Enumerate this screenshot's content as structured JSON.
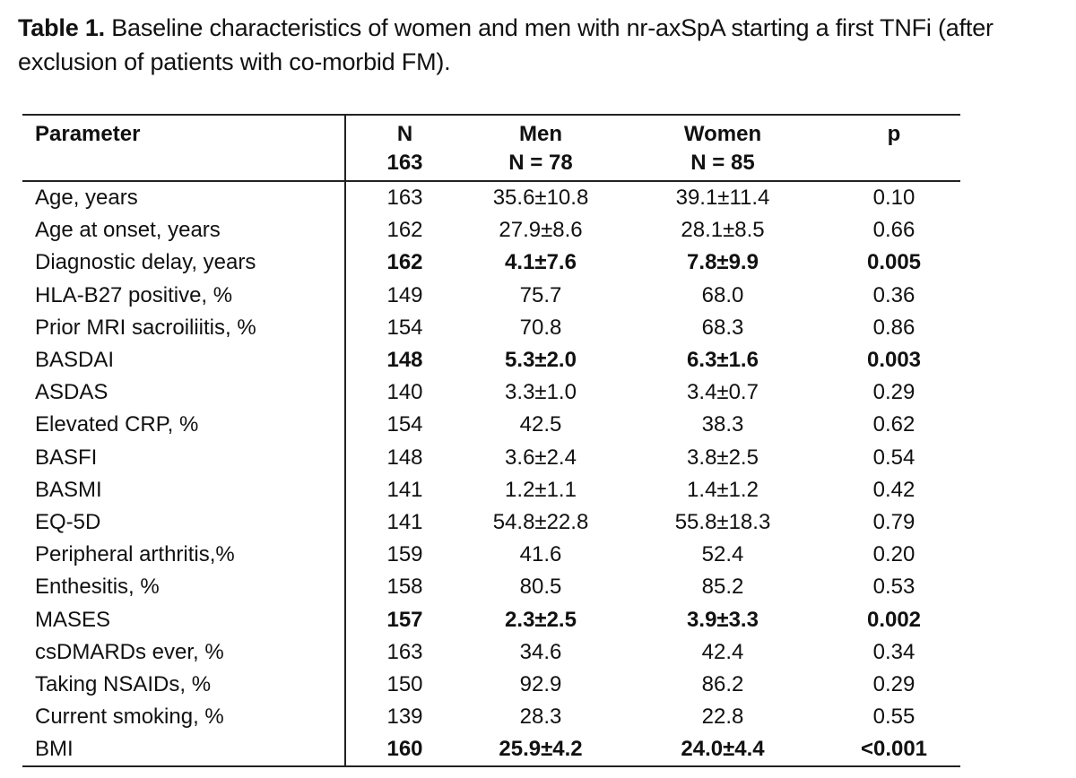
{
  "caption": {
    "label": "Table 1.",
    "text": " Baseline characteristics of women and men with nr-axSpA starting a first TNFi (after exclusion of patients with co-morbid FM)."
  },
  "table": {
    "headers": {
      "parameter": "Parameter",
      "n": "N",
      "n_total": "163",
      "men": "Men",
      "men_n": "N = 78",
      "women": "Women",
      "women_n": "N = 85",
      "p": "p"
    },
    "rows": [
      {
        "parameter": "Age, years",
        "n": "163",
        "men": "35.6±10.8",
        "women": "39.1±11.4",
        "p": "0.10",
        "significant": false
      },
      {
        "parameter": "Age at onset, years",
        "n": "162",
        "men": "27.9±8.6",
        "women": "28.1±8.5",
        "p": "0.66",
        "significant": false
      },
      {
        "parameter": "Diagnostic delay, years",
        "n": "162",
        "men": "4.1±7.6",
        "women": "7.8±9.9",
        "p": "0.005",
        "significant": true
      },
      {
        "parameter": "HLA-B27 positive, %",
        "n": "149",
        "men": "75.7",
        "women": "68.0",
        "p": "0.36",
        "significant": false
      },
      {
        "parameter": "Prior MRI sacroiliitis, %",
        "n": "154",
        "men": "70.8",
        "women": "68.3",
        "p": "0.86",
        "significant": false
      },
      {
        "parameter": "BASDAI",
        "n": "148",
        "men": "5.3±2.0",
        "women": "6.3±1.6",
        "p": "0.003",
        "significant": true
      },
      {
        "parameter": "ASDAS",
        "n": "140",
        "men": "3.3±1.0",
        "women": "3.4±0.7",
        "p": "0.29",
        "significant": false
      },
      {
        "parameter": "Elevated CRP, %",
        "n": "154",
        "men": "42.5",
        "women": "38.3",
        "p": "0.62",
        "significant": false
      },
      {
        "parameter": "BASFI",
        "n": "148",
        "men": "3.6±2.4",
        "women": "3.8±2.5",
        "p": "0.54",
        "significant": false
      },
      {
        "parameter": "BASMI",
        "n": "141",
        "men": "1.2±1.1",
        "women": "1.4±1.2",
        "p": "0.42",
        "significant": false
      },
      {
        "parameter": "EQ-5D",
        "n": "141",
        "men": "54.8±22.8",
        "women": "55.8±18.3",
        "p": "0.79",
        "significant": false
      },
      {
        "parameter": "Peripheral arthritis,%",
        "n": "159",
        "men": "41.6",
        "women": "52.4",
        "p": "0.20",
        "significant": false
      },
      {
        "parameter": "Enthesitis, %",
        "n": "158",
        "men": "80.5",
        "women": "85.2",
        "p": "0.53",
        "significant": false
      },
      {
        "parameter": "MASES",
        "n": "157",
        "men": "2.3±2.5",
        "women": "3.9±3.3",
        "p": "0.002",
        "significant": true
      },
      {
        "parameter": "csDMARDs ever, %",
        "n": "163",
        "men": "34.6",
        "women": "42.4",
        "p": "0.34",
        "significant": false
      },
      {
        "parameter": "Taking NSAIDs, %",
        "n": "150",
        "men": "92.9",
        "women": "86.2",
        "p": "0.29",
        "significant": false
      },
      {
        "parameter": "Current smoking, %",
        "n": "139",
        "men": "28.3",
        "women": "22.8",
        "p": "0.55",
        "significant": false
      },
      {
        "parameter": "BMI",
        "n": "160",
        "men": "25.9±4.2",
        "women": "24.0±4.4",
        "p": "<0.001",
        "significant": true
      }
    ]
  }
}
